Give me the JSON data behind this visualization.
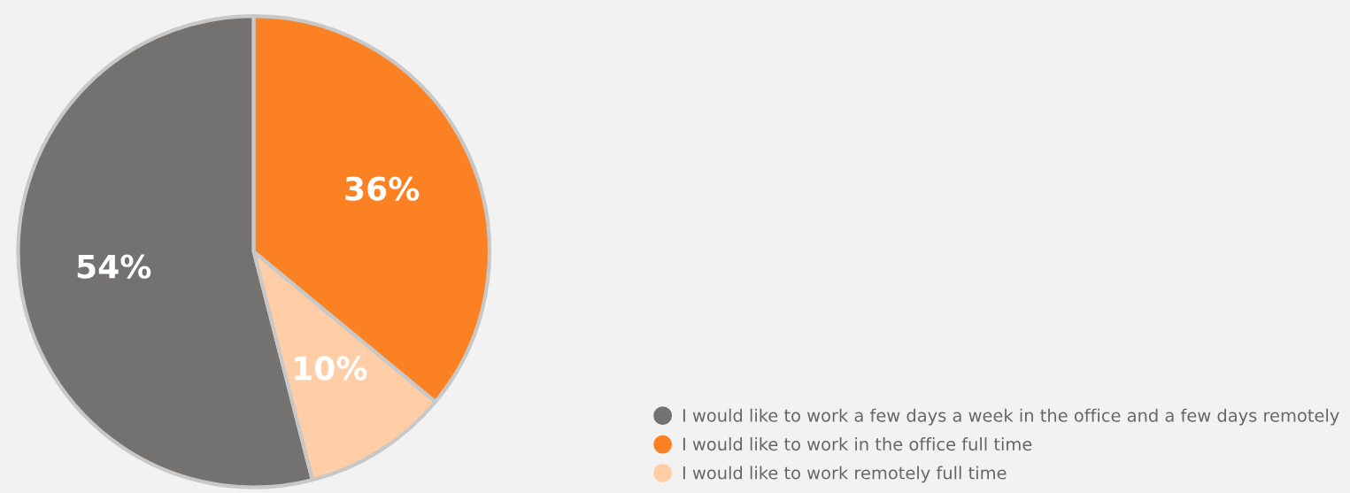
{
  "chart_data": {
    "type": "pie",
    "categories": [
      "I would like to work a few days a week in the office and a few days remotely",
      "I would like to work in the office full time",
      "I would like to work remotely full time"
    ],
    "values": [
      54,
      36,
      10
    ],
    "colors": [
      "#737270",
      "#fc8122",
      "#ffcda6"
    ],
    "value_labels": [
      "54%",
      "36%",
      "10%"
    ],
    "legend": "bottom right"
  }
}
